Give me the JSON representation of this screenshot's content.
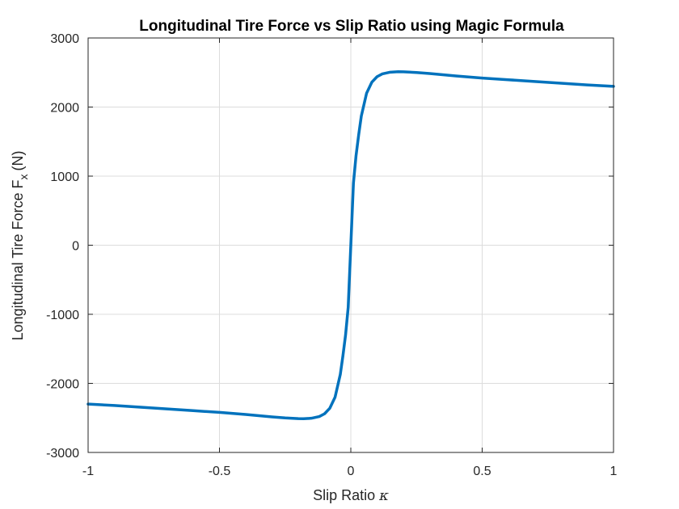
{
  "chart_data": {
    "type": "line",
    "title": "Longitudinal Tire Force vs Slip Ratio using Magic Formula",
    "xlabel": "Slip Ratio",
    "xlabel_symbol": "κ",
    "ylabel": "Longitudinal Tire Force F",
    "ylabel_subscript": "x",
    "ylabel_unit": "(N)",
    "xlim": [
      -1,
      1
    ],
    "ylim": [
      -3000,
      3000
    ],
    "xticks": [
      -1,
      -0.5,
      0,
      0.5,
      1
    ],
    "xtick_labels": [
      "-1",
      "-0.5",
      "0",
      "0.5",
      "1"
    ],
    "yticks": [
      -3000,
      -2000,
      -1000,
      0,
      1000,
      2000,
      3000
    ],
    "ytick_labels": [
      "-3000",
      "-2000",
      "-1000",
      "0",
      "1000",
      "2000",
      "3000"
    ],
    "grid": true,
    "line_color": "#0072BD",
    "series": [
      {
        "x": [
          -1,
          -0.9,
          -0.8,
          -0.7,
          -0.6,
          -0.5,
          -0.4,
          -0.3,
          -0.25,
          -0.2,
          -0.18,
          -0.15,
          -0.12,
          -0.1,
          -0.08,
          -0.06,
          -0.04,
          -0.03,
          -0.02,
          -0.01,
          0,
          0.01,
          0.02,
          0.03,
          0.04,
          0.06,
          0.08,
          0.1,
          0.12,
          0.15,
          0.18,
          0.2,
          0.25,
          0.3,
          0.4,
          0.5,
          0.6,
          0.7,
          0.8,
          0.9,
          1
        ],
        "y": [
          -2300,
          -2320,
          -2345,
          -2370,
          -2395,
          -2420,
          -2450,
          -2485,
          -2500,
          -2510,
          -2512,
          -2505,
          -2480,
          -2440,
          -2360,
          -2200,
          -1870,
          -1600,
          -1300,
          -900,
          0,
          900,
          1300,
          1600,
          1870,
          2200,
          2360,
          2440,
          2480,
          2505,
          2512,
          2510,
          2500,
          2485,
          2450,
          2420,
          2395,
          2370,
          2345,
          2320,
          2300
        ]
      }
    ]
  }
}
